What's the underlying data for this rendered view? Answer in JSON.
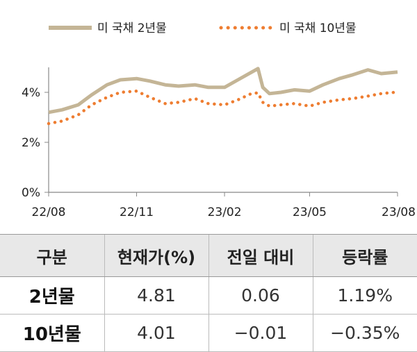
{
  "chart_data": {
    "type": "line",
    "title": "",
    "xlabel": "",
    "ylabel": "",
    "ylim": [
      0,
      5
    ],
    "y_ticks": [
      "0%",
      "2%",
      "4%"
    ],
    "y_tick_values": [
      0,
      2,
      4
    ],
    "x_ticks": [
      "22/08",
      "22/11",
      "23/02",
      "23/05",
      "23/08"
    ],
    "x_tick_dates": [
      "2022-08-01",
      "2022-11-01",
      "2023-02-01",
      "2023-05-01",
      "2023-08-01"
    ],
    "grid": false,
    "legend": "top",
    "x": [
      "2022-08-01",
      "2022-08-15",
      "2022-09-01",
      "2022-09-15",
      "2022-10-01",
      "2022-10-15",
      "2022-11-01",
      "2022-11-15",
      "2022-12-01",
      "2022-12-15",
      "2023-01-01",
      "2023-01-15",
      "2023-02-01",
      "2023-02-15",
      "2023-03-01",
      "2023-03-08",
      "2023-03-13",
      "2023-03-20",
      "2023-04-01",
      "2023-04-15",
      "2023-05-01",
      "2023-05-15",
      "2023-06-01",
      "2023-06-15",
      "2023-07-01",
      "2023-07-15",
      "2023-08-01"
    ],
    "series": [
      {
        "name": "미 국채 2년물",
        "color": "#c4b596",
        "style": "solid",
        "values": [
          3.2,
          3.3,
          3.5,
          3.9,
          4.3,
          4.5,
          4.55,
          4.45,
          4.3,
          4.25,
          4.3,
          4.2,
          4.2,
          4.5,
          4.8,
          4.95,
          4.2,
          3.95,
          4.0,
          4.1,
          4.05,
          4.3,
          4.55,
          4.7,
          4.9,
          4.75,
          4.81
        ]
      },
      {
        "name": "미 국채 10년물",
        "color": "#ee7d31",
        "style": "dotted",
        "values": [
          2.75,
          2.85,
          3.1,
          3.5,
          3.8,
          4.0,
          4.05,
          3.8,
          3.55,
          3.6,
          3.75,
          3.55,
          3.5,
          3.7,
          3.95,
          3.98,
          3.6,
          3.45,
          3.5,
          3.55,
          3.45,
          3.6,
          3.7,
          3.75,
          3.85,
          3.95,
          4.01
        ]
      }
    ]
  },
  "table": {
    "headers": [
      "구분",
      "현재가(%)",
      "전일 대비",
      "등락률"
    ],
    "rows": [
      {
        "label": "2년물",
        "price": "4.81",
        "change": "0.06",
        "rate": "1.19%"
      },
      {
        "label": "10년물",
        "price": "4.01",
        "change": "−0.01",
        "rate": "−0.35%"
      }
    ]
  }
}
